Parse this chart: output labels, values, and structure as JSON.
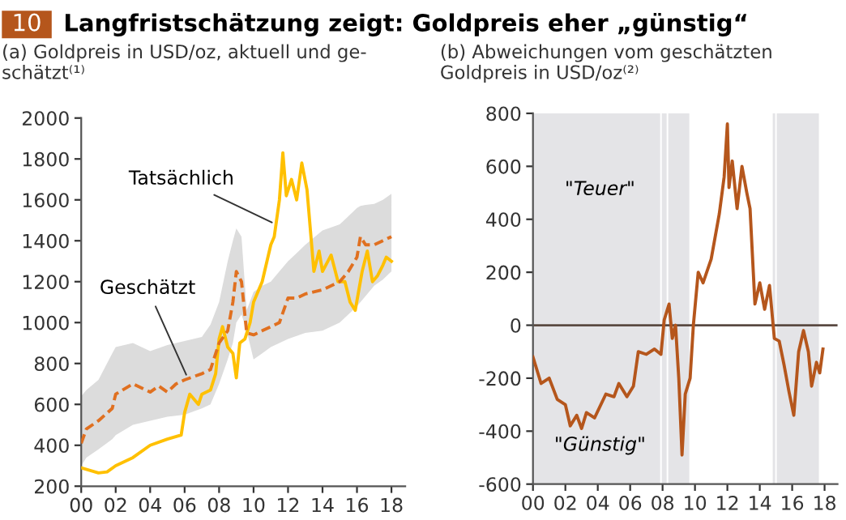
{
  "chart_data": [
    {
      "type": "line",
      "title": "Langfristschätzung zeigt: Goldpreis eher „günstig“",
      "subtitle": "(a) Goldpreis in USD/oz, aktuell und ge-\nschätzt⁽¹⁾",
      "annotations": [
        "10",
        {
          "text": "Tatsächlich",
          "x": 2011.3,
          "y": 1480
        },
        {
          "text": "Geschätzt",
          "x": 2006.2,
          "y": 725
        }
      ],
      "series": [
        {
          "color": "#ffc000",
          "line_style": "solid",
          "x": [
            2000,
            2001,
            2001.5,
            2002,
            2003,
            2004,
            2005,
            2005.8,
            2006,
            2006.3,
            2006.8,
            2007,
            2007.5,
            2007.8,
            2008.0,
            2008.2,
            2008.5,
            2008.8,
            2009.0,
            2009.2,
            2009.5,
            2009.8,
            2010,
            2010.5,
            2011,
            2011.2,
            2011.5,
            2011.7,
            2011.9,
            2012.2,
            2012.5,
            2012.8,
            2013.1,
            2013.3,
            2013.5,
            2013.8,
            2014,
            2014.5,
            2014.9,
            2015.3,
            2015.6,
            2015.9,
            2016.3,
            2016.6,
            2016.9,
            2017.2,
            2017.5,
            2017.7,
            2018
          ],
          "values": [
            290,
            265,
            270,
            300,
            340,
            400,
            430,
            450,
            560,
            650,
            600,
            650,
            670,
            750,
            920,
            980,
            880,
            850,
            730,
            900,
            920,
            1000,
            1100,
            1200,
            1380,
            1420,
            1600,
            1830,
            1620,
            1700,
            1600,
            1780,
            1650,
            1450,
            1250,
            1350,
            1250,
            1330,
            1200,
            1200,
            1100,
            1060,
            1250,
            1350,
            1200,
            1230,
            1280,
            1320,
            1300
          ]
        },
        {
          "color": "#e07020",
          "line_style": "dashed",
          "x": [
            2000,
            2000.3,
            2001,
            2001.8,
            2002,
            2003,
            2004,
            2004.5,
            2005,
            2005.5,
            2006,
            2007,
            2007.5,
            2008,
            2008.5,
            2008.8,
            2009,
            2009.3,
            2009.6,
            2010,
            2010.5,
            2011,
            2011.5,
            2012,
            2012.5,
            2013,
            2014,
            2015,
            2015.5,
            2016,
            2016.2,
            2016.5,
            2017,
            2017.5,
            2018
          ],
          "values": [
            410,
            480,
            520,
            580,
            650,
            700,
            660,
            690,
            660,
            700,
            720,
            750,
            770,
            900,
            960,
            1100,
            1250,
            1200,
            950,
            940,
            960,
            980,
            1000,
            1120,
            1120,
            1140,
            1160,
            1200,
            1250,
            1320,
            1420,
            1380,
            1380,
            1400,
            1420
          ],
          "lower": [
            300,
            340,
            380,
            430,
            450,
            500,
            520,
            530,
            540,
            545,
            550,
            580,
            600,
            700,
            820,
            900,
            1000,
            1040,
            960,
            820,
            850,
            880,
            900,
            920,
            935,
            950,
            960,
            1000,
            1040,
            1080,
            1100,
            1130,
            1180,
            1210,
            1250
          ],
          "upper": [
            640,
            670,
            720,
            850,
            880,
            900,
            860,
            875,
            890,
            900,
            910,
            930,
            990,
            1100,
            1300,
            1400,
            1460,
            1420,
            1060,
            1150,
            1180,
            1200,
            1250,
            1300,
            1340,
            1380,
            1450,
            1480,
            1520,
            1560,
            1570,
            1575,
            1580,
            1600,
            1630
          ]
        }
      ],
      "xlim": [
        2000,
        2018.8
      ],
      "xticks": [
        {
          "value": 2000,
          "label": "00"
        },
        {
          "value": 2002,
          "label": "02"
        },
        {
          "value": 2004,
          "label": "04"
        },
        {
          "value": 2006,
          "label": "06"
        },
        {
          "value": 2008,
          "label": "08"
        },
        {
          "value": 2010,
          "label": "10"
        },
        {
          "value": 2012,
          "label": "12"
        },
        {
          "value": 2014,
          "label": "14"
        },
        {
          "value": 2016,
          "label": "16"
        },
        {
          "value": 2018,
          "label": "18"
        }
      ],
      "ylim": [
        200,
        2000
      ],
      "yticks": [
        200,
        400,
        600,
        800,
        1000,
        1200,
        1400,
        1600,
        1800,
        2000
      ],
      "grid": false,
      "legend": false
    },
    {
      "type": "line",
      "subtitle": "(b) Abweichungen vom geschätzten\nGoldpreis in USD/oz⁽²⁾",
      "annotations": [
        "\"Teuer\"",
        "\"Günstig\""
      ],
      "series": [
        {
          "color": "#b5561c",
          "line_style": "solid",
          "x": [
            2000,
            2000.5,
            2001,
            2001.5,
            2002,
            2002.3,
            2002.7,
            2003,
            2003.3,
            2003.8,
            2004.5,
            2005,
            2005.3,
            2005.8,
            2006.2,
            2006.5,
            2007,
            2007.5,
            2007.9,
            2008.1,
            2008.4,
            2008.6,
            2008.8,
            2009.0,
            2009.2,
            2009.4,
            2009.7,
            2009.9,
            2010.2,
            2010.5,
            2011,
            2011.5,
            2011.8,
            2012.0,
            2012.1,
            2012.3,
            2012.6,
            2012.9,
            2013.2,
            2013.4,
            2013.6,
            2013.7,
            2014,
            2014.3,
            2014.6,
            2014.9,
            2015.2,
            2015.5,
            2015.8,
            2016.1,
            2016.4,
            2016.7,
            2017,
            2017.2,
            2017.5,
            2017.7,
            2017.9
          ],
          "values": [
            -120,
            -220,
            -200,
            -280,
            -300,
            -380,
            -340,
            -390,
            -330,
            -350,
            -260,
            -270,
            -220,
            -270,
            -230,
            -100,
            -110,
            -90,
            -110,
            20,
            80,
            -50,
            0,
            -200,
            -490,
            -260,
            -200,
            0,
            200,
            160,
            250,
            420,
            560,
            760,
            520,
            620,
            440,
            600,
            500,
            440,
            200,
            80,
            160,
            60,
            150,
            -50,
            -60,
            -150,
            -250,
            -340,
            -100,
            -20,
            -100,
            -230,
            -140,
            -180,
            -90
          ]
        }
      ],
      "bands": [
        {
          "axis": "x",
          "from": 2000,
          "to": 2007.85,
          "color": "#e4e4e7"
        },
        {
          "axis": "x",
          "from": 2007.95,
          "to": 2008.25,
          "color": "#e4e4e7"
        },
        {
          "axis": "x",
          "from": 2008.35,
          "to": 2009.65,
          "color": "#e4e4e7"
        },
        {
          "axis": "x",
          "from": 2014.8,
          "to": 2014.95,
          "color": "#e4e4e7"
        },
        {
          "axis": "x",
          "from": 2015.05,
          "to": 2017.65,
          "color": "#e4e4e7"
        }
      ],
      "ref_lines": [
        {
          "axis": "y",
          "value": 0,
          "color": "#5a4a42",
          "line_style": "solid"
        }
      ],
      "xlim": [
        2000,
        2018.8
      ],
      "xticks": [
        {
          "value": 2000,
          "label": "00"
        },
        {
          "value": 2002,
          "label": "02"
        },
        {
          "value": 2004,
          "label": "04"
        },
        {
          "value": 2006,
          "label": "06"
        },
        {
          "value": 2008,
          "label": "08"
        },
        {
          "value": 2010,
          "label": "10"
        },
        {
          "value": 2012,
          "label": "12"
        },
        {
          "value": 2014,
          "label": "14"
        },
        {
          "value": 2016,
          "label": "16"
        },
        {
          "value": 2018,
          "label": "18"
        }
      ],
      "ylim": [
        -600,
        800
      ],
      "yticks": [
        -600,
        -400,
        -200,
        0,
        200,
        400,
        600,
        800
      ],
      "grid": false,
      "legend": false
    }
  ]
}
